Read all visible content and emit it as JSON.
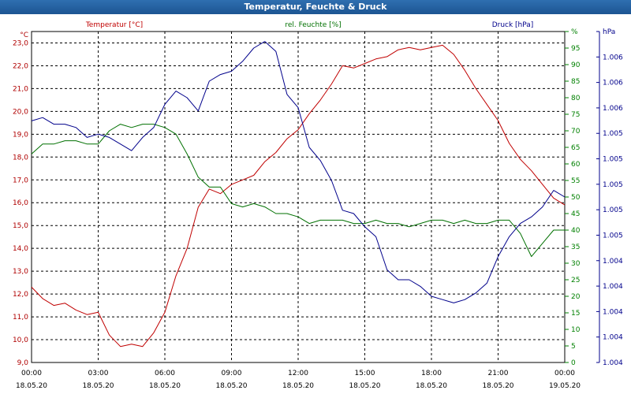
{
  "window": {
    "title": "Temperatur, Feuchte & Druck"
  },
  "chart_data": {
    "type": "line",
    "title": "Temperatur, Feuchte & Druck",
    "grid": true,
    "x": {
      "tick_labels": [
        [
          "00:00",
          "18.05.20"
        ],
        [
          "03:00",
          "18.05.20"
        ],
        [
          "06:00",
          "18.05.20"
        ],
        [
          "09:00",
          "18.05.20"
        ],
        [
          "12:00",
          "18.05.20"
        ],
        [
          "15:00",
          "18.05.20"
        ],
        [
          "18:00",
          "18.05.20"
        ],
        [
          "21:00",
          "18.05.20"
        ],
        [
          "00:00",
          "19.05.20"
        ]
      ],
      "range_hours": [
        0,
        24
      ]
    },
    "axes": {
      "temperature": {
        "unit": "°C",
        "ylim": [
          9.0,
          23.5
        ],
        "ticks": [
          "9,0",
          "10,0",
          "11,0",
          "12,0",
          "13,0",
          "14,0",
          "15,0",
          "16,0",
          "17,0",
          "18,0",
          "19,0",
          "20,0",
          "21,0",
          "22,0",
          "23,0"
        ],
        "color": "#b00000"
      },
      "humidity": {
        "unit": "%",
        "ylim": [
          0,
          100
        ],
        "ticks": [
          "0",
          "5",
          "10",
          "15",
          "20",
          "25",
          "30",
          "35",
          "40",
          "45",
          "50",
          "55",
          "60",
          "65",
          "70",
          "75",
          "80",
          "85",
          "90",
          "95",
          "%"
        ],
        "color": "#008000"
      },
      "pressure": {
        "unit": "hPa",
        "ticks": [
          "1.004",
          "1.004",
          "1.004",
          "1.004",
          "1.004",
          "1.005",
          "1.005",
          "1.005",
          "1.005",
          "1.005",
          "1.006",
          "1.006",
          "1.006",
          "hPa"
        ],
        "color": "#00008b"
      }
    },
    "series": [
      {
        "name": "Temperatur [°C]",
        "color": "#c00000",
        "x": [
          0,
          0.5,
          1,
          1.5,
          2,
          2.5,
          3,
          3.5,
          4,
          4.5,
          5,
          5.5,
          6,
          6.5,
          7,
          7.5,
          8,
          8.5,
          9,
          9.5,
          10,
          10.5,
          11,
          11.5,
          12,
          12.5,
          13,
          13.5,
          14,
          14.5,
          15,
          15.5,
          16,
          16.5,
          17,
          17.5,
          18,
          18.5,
          19,
          19.5,
          20,
          20.5,
          21,
          21.5,
          22,
          22.5,
          23,
          23.5,
          24
        ],
        "values": [
          12.3,
          11.8,
          11.5,
          11.6,
          11.3,
          11.1,
          11.2,
          10.2,
          9.7,
          9.8,
          9.7,
          10.3,
          11.2,
          12.8,
          14.0,
          15.8,
          16.6,
          16.4,
          16.8,
          17.0,
          17.2,
          17.8,
          18.2,
          18.8,
          19.2,
          19.9,
          20.5,
          21.2,
          22.0,
          21.9,
          22.1,
          22.3,
          22.4,
          22.7,
          22.8,
          22.7,
          22.8,
          22.9,
          22.5,
          21.8,
          21.0,
          20.3,
          19.6,
          18.6,
          17.9,
          17.4,
          16.8,
          16.2,
          15.9
        ]
      },
      {
        "name": "rel. Feuchte [%]",
        "color": "#007000",
        "x": [
          0,
          0.5,
          1,
          1.5,
          2,
          2.5,
          3,
          3.5,
          4,
          4.5,
          5,
          5.5,
          6,
          6.5,
          7,
          7.5,
          8,
          8.5,
          9,
          9.5,
          10,
          10.5,
          11,
          11.5,
          12,
          12.5,
          13,
          13.5,
          14,
          14.5,
          15,
          15.5,
          16,
          16.5,
          17,
          17.5,
          18,
          18.5,
          19,
          19.5,
          20,
          20.5,
          21,
          21.5,
          22,
          22.5,
          23,
          23.5,
          24
        ],
        "values": [
          63,
          66,
          66,
          67,
          67,
          66,
          66,
          70,
          72,
          71,
          72,
          72,
          71,
          69,
          63,
          56,
          53,
          53,
          48,
          47,
          48,
          47,
          45,
          45,
          44,
          42,
          43,
          43,
          43,
          42,
          42,
          43,
          42,
          42,
          41,
          42,
          43,
          43,
          42,
          43,
          42,
          42,
          43,
          43,
          39,
          32,
          36,
          40,
          40
        ]
      },
      {
        "name": "Druck [hPa]",
        "color": "#00008b",
        "x": [
          0,
          0.5,
          1,
          1.5,
          2,
          2.5,
          3,
          3.5,
          4,
          4.5,
          5,
          5.5,
          6,
          6.5,
          7,
          7.5,
          8,
          8.5,
          9,
          9.5,
          10,
          10.5,
          11,
          11.5,
          12,
          12.5,
          13,
          13.5,
          14,
          14.5,
          15,
          15.5,
          16,
          16.5,
          17,
          17.5,
          18,
          18.5,
          19,
          19.5,
          20,
          20.5,
          21,
          21.5,
          22,
          22.5,
          23,
          23.5,
          24
        ],
        "values": [
          73,
          74,
          72,
          72,
          71,
          68,
          69,
          68,
          66,
          64,
          68,
          71,
          78,
          82,
          80,
          76,
          85,
          87,
          88,
          91,
          95,
          97,
          94,
          81,
          77,
          65,
          61,
          55,
          46,
          45,
          41,
          38,
          28,
          25,
          25,
          23,
          20,
          19,
          18,
          19,
          21,
          24,
          32,
          38,
          42,
          44,
          47,
          52,
          50
        ]
      }
    ]
  }
}
